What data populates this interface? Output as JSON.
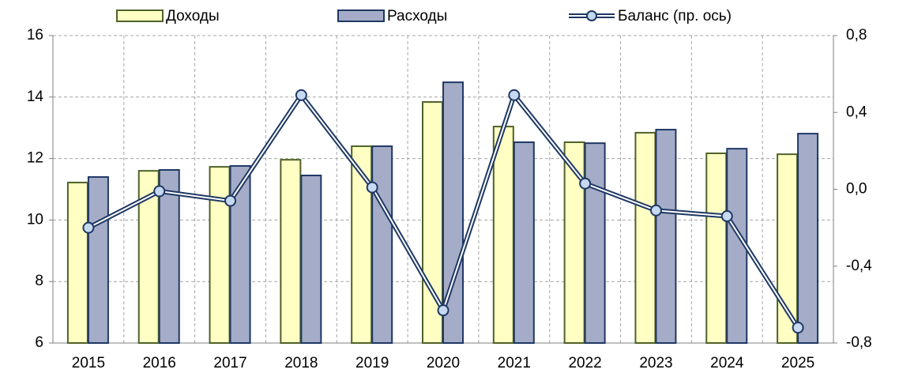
{
  "chart_data": {
    "type": "bar_line",
    "categories": [
      "2015",
      "2016",
      "2017",
      "2018",
      "2019",
      "2020",
      "2021",
      "2022",
      "2023",
      "2024",
      "2025"
    ],
    "series": [
      {
        "name": "Доходы",
        "type": "bar",
        "color": "#ffffc4",
        "edge": "#4f6228",
        "values": [
          11.22,
          11.6,
          11.73,
          11.96,
          12.4,
          13.84,
          13.04,
          12.53,
          12.84,
          12.17,
          12.14
        ]
      },
      {
        "name": "Расходы",
        "type": "bar",
        "color": "#a5acc8",
        "edge": "#1f3864",
        "values": [
          11.4,
          11.63,
          11.76,
          11.45,
          12.4,
          14.48,
          12.53,
          12.5,
          12.94,
          12.32,
          12.81
        ]
      },
      {
        "name": "Баланс (пр. ось)",
        "type": "line",
        "axis": "y2",
        "color": "#1f3864",
        "marker": "#c6d9f1",
        "values": [
          -0.2,
          -0.01,
          -0.06,
          0.49,
          0.01,
          -0.63,
          0.49,
          0.03,
          -0.11,
          -0.14,
          -0.72
        ]
      }
    ],
    "ylim": [
      6,
      16
    ],
    "yticks": [
      6,
      8,
      10,
      12,
      14,
      16
    ],
    "y2lim": [
      -0.8,
      0.8
    ],
    "y2ticks": [
      {
        "value": -0.8,
        "label": "-0,8"
      },
      {
        "value": -0.4,
        "label": "-0,4"
      },
      {
        "value": 0,
        "label": "0,0"
      },
      {
        "value": 0.4,
        "label": "0,4"
      },
      {
        "value": 0.8,
        "label": "0,8"
      }
    ],
    "grid": true,
    "legend": "top"
  }
}
